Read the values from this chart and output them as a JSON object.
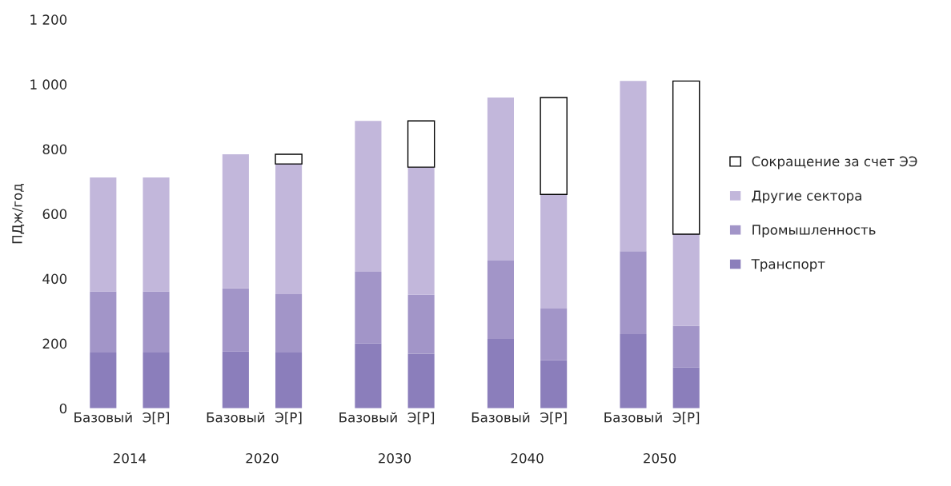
{
  "chart_data": {
    "type": "bar",
    "stacked": true,
    "ylabel": "ПДж/год",
    "categories": [
      "Базовый",
      "Э[Р]",
      "Базовый",
      "Э[Р]",
      "Базовый",
      "Э[Р]",
      "Базовый",
      "Э[Р]",
      "Базовый",
      "Э[Р]"
    ],
    "annotations": [
      "2014",
      "2020",
      "2030",
      "2040",
      "2050"
    ],
    "series": [
      {
        "name": "Транспорт",
        "color": "#8b7ebb",
        "values": [
          172,
          172,
          175,
          172,
          200,
          168,
          214,
          148,
          229,
          126
        ]
      },
      {
        "name": "Промышленность",
        "color": "#a295c8",
        "values": [
          188,
          188,
          195,
          180,
          221,
          182,
          242,
          160,
          256,
          128
        ]
      },
      {
        "name": "Другие сектора",
        "color": "#c2b7db",
        "values": [
          352,
          352,
          414,
          402,
          466,
          394,
          503,
          352,
          525,
          283
        ]
      },
      {
        "name": "Сокращение за счет ЭЭ",
        "color": "#ffffff",
        "values": [
          null,
          null,
          null,
          30,
          null,
          143,
          null,
          299,
          null,
          473
        ]
      }
    ],
    "ylim": [
      0,
      1200
    ],
    "yticks": [
      0,
      200,
      400,
      600,
      800,
      {
        "value": 1000,
        "label": "1 000"
      },
      {
        "value": 1200,
        "label": "1 200"
      }
    ],
    "legend": "right",
    "grid": false
  }
}
